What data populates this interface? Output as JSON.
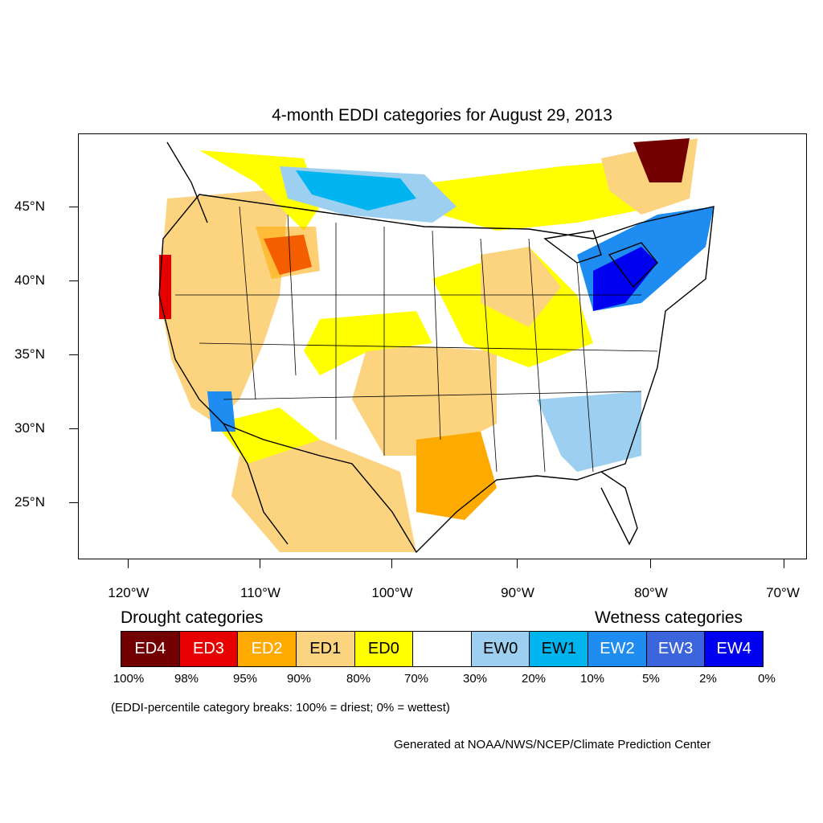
{
  "title": "4-month EDDI categories for August 29, 2013",
  "latitude_labels": [
    "45°N",
    "40°N",
    "35°N",
    "30°N",
    "25°N"
  ],
  "longitude_labels": [
    "120°W",
    "110°W",
    "100°W",
    "90°W",
    "80°W",
    "70°W"
  ],
  "legend": {
    "drought_title": "Drought categories",
    "wetness_title": "Wetness categories",
    "categories": [
      {
        "label": "ED4",
        "color": "#730000",
        "text_color": "#ffffff"
      },
      {
        "label": "ED3",
        "color": "#e60000",
        "text_color": "#ffffff"
      },
      {
        "label": "ED2",
        "color": "#ffaa00",
        "text_color": "#ffffff"
      },
      {
        "label": "ED1",
        "color": "#fcd37f",
        "text_color": "#000000"
      },
      {
        "label": "ED0",
        "color": "#ffff00",
        "text_color": "#000000"
      },
      {
        "label": "",
        "color": "#ffffff",
        "text_color": "#000000"
      },
      {
        "label": "EW0",
        "color": "#9dd0f0",
        "text_color": "#000000"
      },
      {
        "label": "EW1",
        "color": "#00b4f0",
        "text_color": "#000000"
      },
      {
        "label": "EW2",
        "color": "#1e8cf0",
        "text_color": "#ffffff"
      },
      {
        "label": "EW3",
        "color": "#3c64dc",
        "text_color": "#ffffff"
      },
      {
        "label": "EW4",
        "color": "#0000f0",
        "text_color": "#ffffff"
      }
    ],
    "percentiles": [
      "100%",
      "98%",
      "95%",
      "90%",
      "80%",
      "70%",
      "30%",
      "20%",
      "10%",
      "5%",
      "2%",
      "0%"
    ]
  },
  "note": "(EDDI-percentile category breaks: 100% = driest; 0% = wettest)",
  "credit": "Generated at NOAA/NWS/NCEP/Climate Prediction Center"
}
